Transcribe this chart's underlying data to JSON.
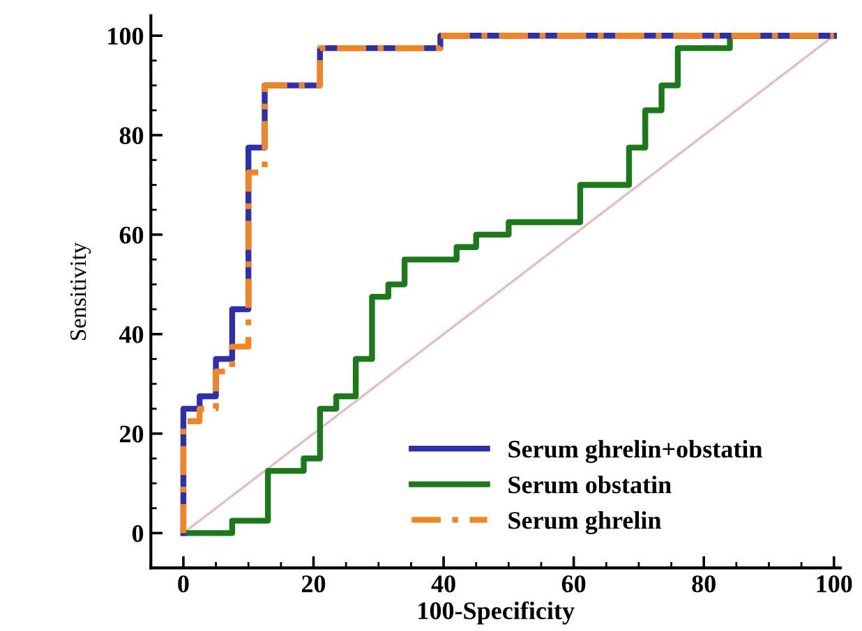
{
  "chart_data": {
    "type": "step",
    "xlabel": "100-Specificity",
    "ylabel": "Sensitivity",
    "xlim": [
      -5,
      101
    ],
    "ylim": [
      -7,
      104
    ],
    "xticks": [
      0,
      {
        "value": 5,
        "label": null
      },
      {
        "value": 10,
        "label": null
      },
      {
        "value": 15,
        "label": null
      },
      20,
      {
        "value": 25,
        "label": null
      },
      {
        "value": 30,
        "label": null
      },
      {
        "value": 35,
        "label": null
      },
      40,
      {
        "value": 45,
        "label": null
      },
      {
        "value": 50,
        "label": null
      },
      {
        "value": 55,
        "label": null
      },
      60,
      {
        "value": 65,
        "label": null
      },
      {
        "value": 70,
        "label": null
      },
      {
        "value": 75,
        "label": null
      },
      80,
      {
        "value": 85,
        "label": null
      },
      {
        "value": 90,
        "label": null
      },
      {
        "value": 95,
        "label": null
      },
      100
    ],
    "yticks": [
      0,
      {
        "value": 5,
        "label": null
      },
      {
        "value": 10,
        "label": null
      },
      {
        "value": 15,
        "label": null
      },
      20,
      {
        "value": 25,
        "label": null
      },
      {
        "value": 30,
        "label": null
      },
      {
        "value": 35,
        "label": null
      },
      40,
      {
        "value": 45,
        "label": null
      },
      {
        "value": 50,
        "label": null
      },
      {
        "value": 55,
        "label": null
      },
      60,
      {
        "value": 65,
        "label": null
      },
      {
        "value": 70,
        "label": null
      },
      {
        "value": 75,
        "label": null
      },
      80,
      {
        "value": 85,
        "label": null
      },
      {
        "value": 90,
        "label": null
      },
      {
        "value": 95,
        "label": null
      },
      100
    ],
    "grid": false,
    "legend": "bottom right",
    "series": [
      {
        "type": "line",
        "color": "#e3bcc4",
        "line_style": "solid",
        "x": [
          0,
          100
        ],
        "values": [
          0,
          100
        ]
      },
      {
        "name": "Serum obstatin",
        "color": "#1a7a1a",
        "line_style": "solid",
        "x": [
          0,
          0,
          7.5,
          13,
          18.5,
          21,
          23.5,
          26.5,
          29,
          31.5,
          34,
          42,
          45,
          50,
          61,
          68.5,
          71,
          73.5,
          76,
          84,
          100
        ],
        "values": [
          0,
          0,
          2.5,
          12.5,
          15,
          25,
          27.5,
          35,
          47.5,
          50,
          55,
          57.5,
          60,
          62.5,
          70,
          77.5,
          85,
          90,
          97.5,
          100,
          100
        ]
      },
      {
        "name": "Serum ghrelin+obstatin",
        "color": "#2b2fb0",
        "line_style": "solid",
        "x": [
          0,
          0,
          2.5,
          5,
          7.5,
          10,
          12.5,
          21,
          39.5,
          100
        ],
        "values": [
          0,
          25,
          27.5,
          35,
          45,
          77.5,
          90,
          97.5,
          100,
          100
        ]
      },
      {
        "name": "Serum ghrelin",
        "color": "#f5841f",
        "line_style": "dashed",
        "x": [
          0,
          0,
          2.5,
          5,
          7.5,
          10,
          12.5,
          21,
          39.5,
          100
        ],
        "values": [
          0,
          22.5,
          25,
          32.5,
          37.5,
          72.5,
          90,
          97.5,
          100,
          100
        ]
      }
    ]
  }
}
